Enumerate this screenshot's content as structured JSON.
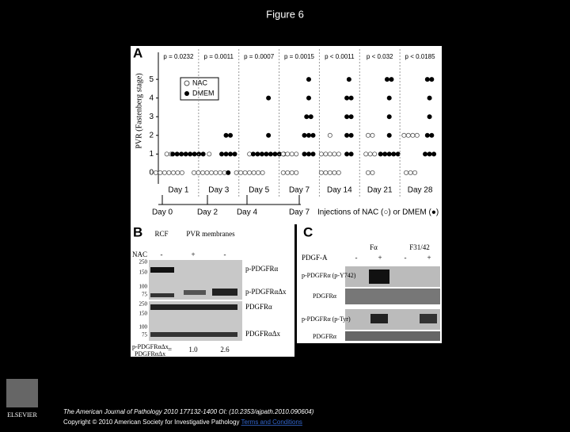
{
  "header": {
    "title": "Figure 6"
  },
  "figure": {
    "panel_a": {
      "label": "A",
      "y_label": "PVR (Fastenberg stage)",
      "ylim": [
        -0.6,
        5.6
      ],
      "yticks": [
        0,
        1,
        2,
        3,
        4,
        5
      ],
      "legend": [
        "NAC",
        "DMEM"
      ],
      "p_values": [
        "p = 0.0232",
        "p = 0.0011",
        "p = 0.0007",
        "p = 0.0015",
        "p < 0.0011",
        "p < 0.032",
        "p < 0.0185"
      ],
      "days": [
        "Day 1",
        "Day 3",
        "Day 5",
        "Day 7",
        "Day 14",
        "Day 21",
        "Day 28"
      ],
      "nac": [
        [
          0,
          0,
          0,
          0,
          0,
          0,
          0,
          1,
          1
        ],
        [
          0,
          0,
          0,
          0,
          0,
          0,
          0,
          0,
          1
        ],
        [
          0,
          0,
          0,
          0,
          0,
          0,
          0,
          1
        ],
        [
          0,
          0,
          0,
          0,
          1,
          1,
          1,
          1
        ],
        [
          0,
          0,
          0,
          0,
          0,
          1,
          1,
          1,
          1,
          1,
          2
        ],
        [
          0,
          0,
          1,
          1,
          1,
          2,
          2
        ],
        [
          0,
          0,
          0,
          2,
          2,
          2,
          2
        ]
      ],
      "dmem": [
        [
          1,
          1,
          1,
          1,
          1,
          1,
          1,
          1
        ],
        [
          1,
          1,
          1,
          1,
          2,
          2,
          0
        ],
        [
          1,
          1,
          1,
          1,
          1,
          1,
          1,
          1,
          2,
          4
        ],
        [
          1,
          1,
          1,
          2,
          2,
          2,
          3,
          3,
          4,
          5
        ],
        [
          1,
          1,
          2,
          2,
          3,
          3,
          4,
          4,
          5
        ],
        [
          1,
          1,
          1,
          1,
          1,
          2,
          3,
          4,
          5,
          5
        ],
        [
          1,
          1,
          1,
          2,
          2,
          3,
          4,
          5,
          5
        ]
      ],
      "injection_days": [
        "Day 0",
        "Day 2",
        "Day 4",
        "Day 7"
      ],
      "injection_note": "Injections of NAC (○) or DMEM (●)"
    },
    "panel_b": {
      "label": "B",
      "rcf": "RCF",
      "pvr": "PVR membranes",
      "nac": "NAC",
      "signs": [
        "-",
        "+",
        "-"
      ],
      "markers_top": [
        "250",
        "150",
        "100",
        "75"
      ],
      "markers_bottom": [
        "250",
        "150",
        "100",
        "75"
      ],
      "bands": [
        "p-PDGFRα",
        "p-PDGFRαΔx",
        "PDGFRα",
        "PDGFRαΔx"
      ],
      "ratio_top": "p-PDGFRαΔx",
      "ratio_bottom": "PDGFRαΔx",
      "equals": "=",
      "ratios": [
        "1.0",
        "2.6"
      ]
    },
    "panel_c": {
      "label": "C",
      "groups": [
        "Fα",
        "F31/42"
      ],
      "ligand": "PDGF-A",
      "signs": [
        "-",
        "+",
        "-",
        "+"
      ],
      "rows": [
        "p-PDGFRα (p-Y742)",
        "PDGFRα",
        "p-PDGFRα (p-Tyr)",
        "PDGFRα"
      ]
    }
  },
  "footer": {
    "citation": "The American Journal of Pathology 2010 177132-1400 OI: (10.2353/ajpath.2010.090604)",
    "copyright": "Copyright © 2010 American Society for Investigative Pathology",
    "terms": "Terms and Conditions",
    "logo": "ELSEVIER"
  }
}
